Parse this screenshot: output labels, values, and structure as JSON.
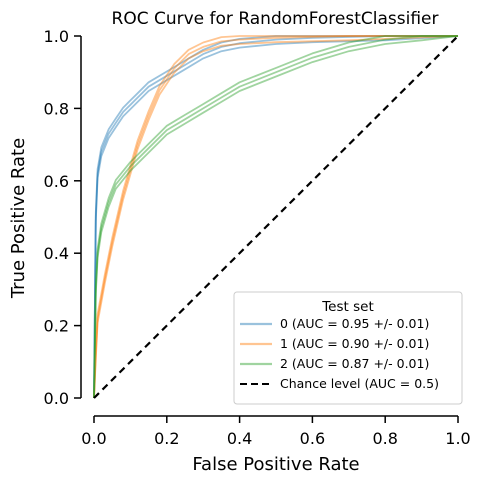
{
  "chart_data": {
    "type": "line",
    "title": "ROC Curve for RandomForestClassifier",
    "xlabel": "False Positive Rate",
    "ylabel": "True Positive Rate",
    "xlim": [
      0,
      1
    ],
    "ylim": [
      0,
      1
    ],
    "x_ticks": [
      "0.0",
      "0.2",
      "0.4",
      "0.6",
      "0.8",
      "1.0"
    ],
    "y_ticks": [
      "0.0",
      "0.2",
      "0.4",
      "0.6",
      "0.8",
      "1.0"
    ],
    "grid": false,
    "legend": {
      "title": "Test set",
      "placement": "lower-right",
      "entries": [
        "0 (AUC = 0.95 +/- 0.01)",
        "1 (AUC = 0.90 +/- 0.01)",
        "2 (AUC = 0.87 +/- 0.01)",
        "Chance level (AUC = 0.5)"
      ]
    },
    "series": [
      {
        "name": "0 (AUC = 0.95 +/- 0.01)",
        "color": "#1f77b4",
        "points": [
          [
            0,
            0
          ],
          [
            0.005,
            0.5
          ],
          [
            0.01,
            0.62
          ],
          [
            0.02,
            0.68
          ],
          [
            0.04,
            0.73
          ],
          [
            0.06,
            0.76
          ],
          [
            0.08,
            0.79
          ],
          [
            0.1,
            0.81
          ],
          [
            0.12,
            0.83
          ],
          [
            0.15,
            0.86
          ],
          [
            0.2,
            0.89
          ],
          [
            0.25,
            0.92
          ],
          [
            0.3,
            0.95
          ],
          [
            0.35,
            0.97
          ],
          [
            0.4,
            0.98
          ],
          [
            0.5,
            0.99
          ],
          [
            0.6,
            0.995
          ],
          [
            0.8,
            1.0
          ],
          [
            1.0,
            1.0
          ]
        ]
      },
      {
        "name": "1 (AUC = 0.90 +/- 0.01)",
        "color": "#ff7f0e",
        "points": [
          [
            0,
            0
          ],
          [
            0.005,
            0.12
          ],
          [
            0.01,
            0.22
          ],
          [
            0.03,
            0.33
          ],
          [
            0.05,
            0.43
          ],
          [
            0.08,
            0.56
          ],
          [
            0.1,
            0.63
          ],
          [
            0.12,
            0.7
          ],
          [
            0.15,
            0.78
          ],
          [
            0.18,
            0.85
          ],
          [
            0.22,
            0.91
          ],
          [
            0.26,
            0.95
          ],
          [
            0.3,
            0.97
          ],
          [
            0.35,
            0.985
          ],
          [
            0.4,
            0.99
          ],
          [
            0.5,
            0.995
          ],
          [
            0.7,
            1.0
          ],
          [
            1.0,
            1.0
          ]
        ]
      },
      {
        "name": "2 (AUC = 0.87 +/- 0.01)",
        "color": "#2ca02c",
        "points": [
          [
            0,
            0
          ],
          [
            0.005,
            0.3
          ],
          [
            0.01,
            0.4
          ],
          [
            0.02,
            0.47
          ],
          [
            0.04,
            0.54
          ],
          [
            0.06,
            0.59
          ],
          [
            0.1,
            0.64
          ],
          [
            0.15,
            0.69
          ],
          [
            0.2,
            0.74
          ],
          [
            0.25,
            0.77
          ],
          [
            0.3,
            0.8
          ],
          [
            0.35,
            0.83
          ],
          [
            0.4,
            0.86
          ],
          [
            0.5,
            0.9
          ],
          [
            0.6,
            0.94
          ],
          [
            0.7,
            0.97
          ],
          [
            0.8,
            0.99
          ],
          [
            0.9,
            1.0
          ],
          [
            1.0,
            1.0
          ]
        ]
      },
      {
        "name": "Chance level (AUC = 0.5)",
        "color": "#000000",
        "dashed": true,
        "points": [
          [
            0,
            0
          ],
          [
            1,
            1
          ]
        ]
      }
    ]
  }
}
